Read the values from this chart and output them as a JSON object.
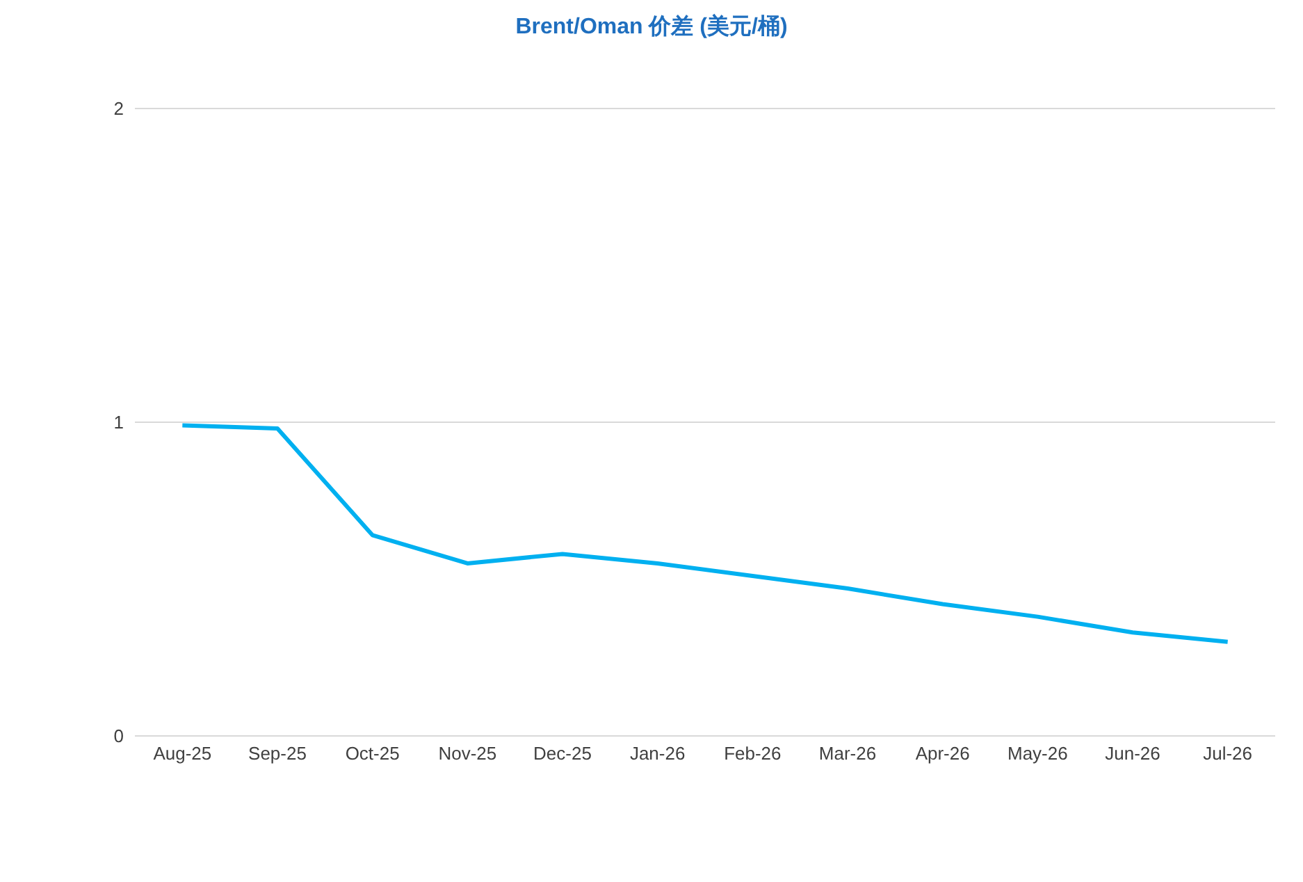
{
  "chart_data": {
    "type": "line",
    "title": "Brent/Oman 价差 (美元/桶)",
    "categories": [
      "Aug-25",
      "Sep-25",
      "Oct-25",
      "Nov-25",
      "Dec-25",
      "Jan-26",
      "Feb-26",
      "Mar-26",
      "Apr-26",
      "May-26",
      "Jun-26",
      "Jul-26"
    ],
    "series": [
      {
        "color": "#00b0f0",
        "values": [
          0.99,
          0.98,
          0.64,
          0.55,
          0.58,
          0.55,
          0.51,
          0.47,
          0.42,
          0.38,
          0.33,
          0.3
        ]
      }
    ],
    "ylim": [
      0,
      2
    ],
    "yticks": [
      0,
      1,
      2
    ],
    "grid": "y",
    "legend": false,
    "marker": "none",
    "line_style": "solid"
  }
}
